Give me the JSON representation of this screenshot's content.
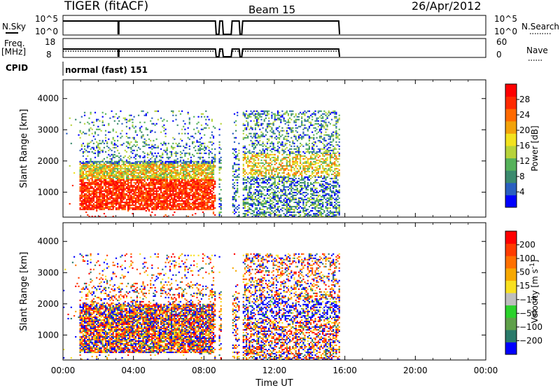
{
  "header": {
    "station": "TIGER (fitACF)",
    "beam": "Beam 15",
    "date": "26/Apr/2012"
  },
  "status_panels": {
    "nsky_label": "N.Sky",
    "nsky_ticks": [
      "10^5",
      "10^0"
    ],
    "nsearch_label": "N.Search",
    "nsearch_ticks": [
      "10^5",
      "10^0"
    ],
    "freq_label_1": "Freq.",
    "freq_label_2": "[MHz]",
    "freq_ticks": [
      "18",
      "8"
    ],
    "nave_label": "Nave",
    "nave_ticks": [
      "60",
      "0"
    ],
    "cpid_label": "CPID",
    "cpid_value": "normal (fast) 151"
  },
  "chart_data": [
    {
      "type": "heatmap",
      "name": "power-panel",
      "ylabel": "Slant Range [km]",
      "ylim": [
        200,
        4600
      ],
      "yticks": [
        "1000",
        "2000",
        "3000",
        "4000"
      ],
      "xlim": [
        0,
        24
      ],
      "colorbar": {
        "label": "Power [dB]",
        "ticks": [
          "28",
          "24",
          "20",
          "16",
          "12",
          "8",
          "4"
        ],
        "colors": [
          "#0000ff",
          "#2a5fc0",
          "#3b8a6e",
          "#55b25a",
          "#b7d33a",
          "#f2e21e",
          "#f2a20a",
          "#ff6a00",
          "#ff2a00",
          "#ff0000"
        ]
      },
      "data_gaps_ut": [
        [
          8.65,
          8.85
        ],
        [
          9.05,
          9.6
        ],
        [
          10.05,
          10.2
        ],
        [
          15.7,
          24
        ]
      ]
    },
    {
      "type": "heatmap",
      "name": "velocity-panel",
      "ylabel": "Slant Range [km]",
      "ylim": [
        200,
        4600
      ],
      "yticks": [
        "1000",
        "2000",
        "3000",
        "4000"
      ],
      "xlim": [
        0,
        24
      ],
      "colorbar": {
        "label": "Velocity [m s",
        "label_sup": "-1",
        "label_end": "]",
        "ticks": [
          "200",
          "100",
          "50",
          "15",
          "−15",
          "−50",
          "−100",
          "−200"
        ],
        "colors": [
          "#0000ff",
          "#2a7a6a",
          "#5fa04a",
          "#2bd22b",
          "#bebebe",
          "#f8e020",
          "#f7a800",
          "#ff7000",
          "#ff3c00",
          "#ff0000"
        ]
      },
      "data_gaps_ut": [
        [
          8.65,
          8.85
        ],
        [
          9.05,
          9.6
        ],
        [
          10.05,
          10.2
        ],
        [
          15.7,
          24
        ]
      ]
    }
  ],
  "xaxis": {
    "ticks": [
      "00:00",
      "04:00",
      "08:00",
      "12:00",
      "16:00",
      "20:00",
      "00:00"
    ],
    "label": "Time UT"
  },
  "colors": {
    "power": [
      "#0000ff",
      "#2a5fc0",
      "#3b8a6e",
      "#55b25a",
      "#b7d33a",
      "#f2e21e",
      "#f2a20a",
      "#ff6a00",
      "#ff2a00",
      "#ff0000"
    ],
    "velocity": [
      "#0000ff",
      "#2a7a6a",
      "#5fa04a",
      "#2bd22b",
      "#bebebe",
      "#f8e020",
      "#f7a800",
      "#ff7000",
      "#ff3c00",
      "#ff0000"
    ]
  }
}
